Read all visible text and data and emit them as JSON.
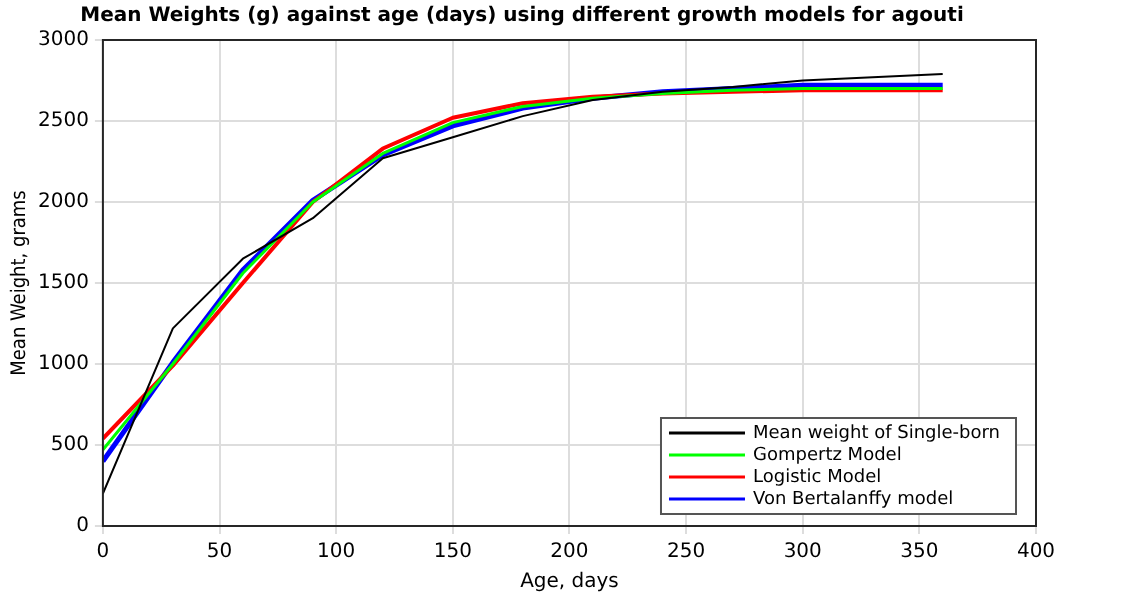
{
  "chart_data": {
    "type": "line",
    "title": "Mean Weights (g) against age (days) using different growth models for agouti",
    "xlabel": "Age, days",
    "ylabel": "Mean Weight, grams",
    "x": [
      0,
      30,
      60,
      90,
      120,
      150,
      180,
      210,
      240,
      270,
      300,
      330,
      360
    ],
    "series": [
      {
        "name": "Mean weight of Single-born",
        "color": "#000000",
        "values": [
          200,
          1220,
          1650,
          1900,
          2270,
          2400,
          2530,
          2630,
          2680,
          2710,
          2750,
          2770,
          2790
        ]
      },
      {
        "name": "Gompertz Model",
        "color": "#00ff00",
        "values": [
          470,
          1000,
          1560,
          2000,
          2300,
          2490,
          2590,
          2640,
          2670,
          2690,
          2700,
          2700,
          2700
        ]
      },
      {
        "name": "Logistic Model",
        "color": "#ff0000",
        "values": [
          540,
          990,
          1500,
          2000,
          2330,
          2520,
          2610,
          2650,
          2670,
          2680,
          2690,
          2690,
          2690
        ]
      },
      {
        "name": "Von Bertalanffy model",
        "color": "#0000ff",
        "values": [
          400,
          1010,
          1580,
          2010,
          2290,
          2470,
          2580,
          2640,
          2680,
          2700,
          2720,
          2720,
          2720
        ]
      }
    ],
    "xlim": [
      0,
      400
    ],
    "xticks": [
      0,
      50,
      100,
      150,
      200,
      250,
      300,
      350,
      400
    ],
    "ylim": [
      0,
      3000
    ],
    "yticks": [
      0,
      500,
      1000,
      1500,
      2000,
      2500,
      3000
    ],
    "grid": true,
    "legend": "bottom right",
    "marker": "none",
    "line_style": "solid"
  }
}
